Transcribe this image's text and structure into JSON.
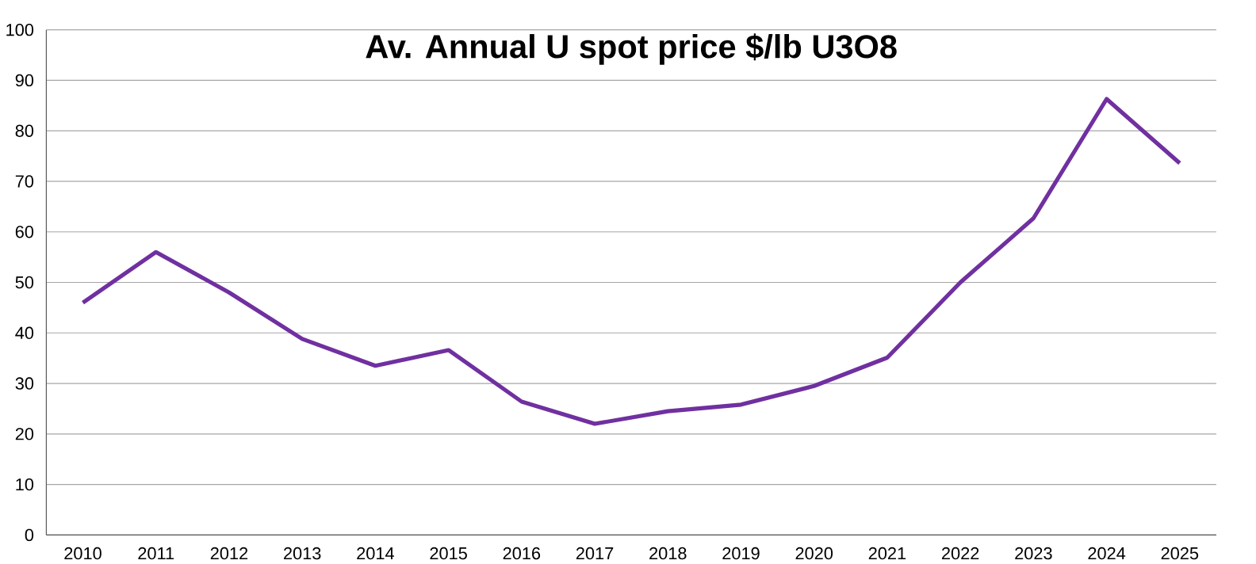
{
  "chart_data": {
    "type": "line",
    "title": "Av. Annual U spot price $/lb U3O8",
    "categories": [
      "2010",
      "2011",
      "2012",
      "2013",
      "2014",
      "2015",
      "2016",
      "2017",
      "2018",
      "2019",
      "2020",
      "2021",
      "2022",
      "2023",
      "2024",
      "2025"
    ],
    "series": [
      {
        "color": "#7030a0",
        "values": [
          46,
          56,
          48,
          38.8,
          33.5,
          36.6,
          26.4,
          22,
          24.5,
          25.8,
          29.5,
          35.1,
          50,
          62.7,
          86.3,
          73.6
        ]
      }
    ],
    "ylim": [
      0,
      100
    ],
    "yticks": [
      0,
      10,
      20,
      30,
      40,
      50,
      60,
      70,
      80,
      90,
      100
    ],
    "grid": "y",
    "marker": "none",
    "line_style": "solid"
  }
}
